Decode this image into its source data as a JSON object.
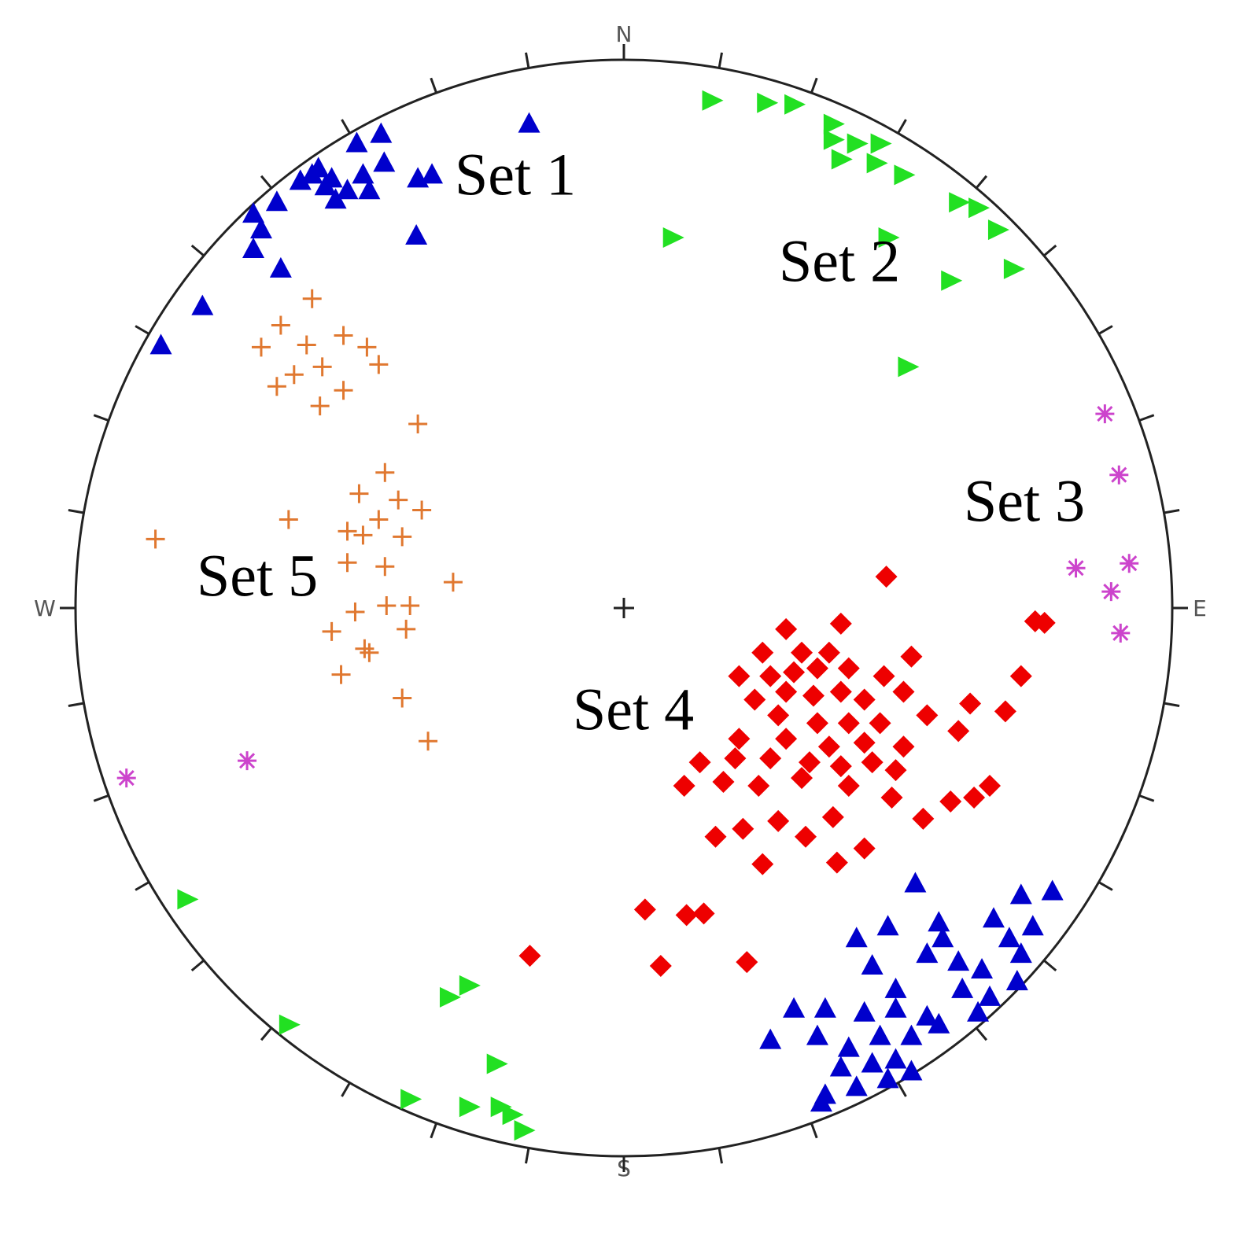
{
  "chart_data": {
    "type": "stereonet",
    "directions": {
      "north": "N",
      "east": "E",
      "south": "S",
      "west": "W"
    },
    "xlim": [
      -700,
      700
    ],
    "ylim": [
      -700,
      700
    ],
    "series": [
      {
        "name": "Set 1",
        "color": "#0000cc",
        "marker": "triangle-up",
        "x": [
          -121,
          -310,
          -341,
          -306,
          -390,
          -413,
          -373,
          -333,
          -353,
          -263,
          -245,
          -325,
          -368,
          -443,
          -473,
          -463,
          -473,
          -438,
          -538,
          -591,
          -265,
          -398,
          -381,
          372,
          547,
          507,
          337,
          402,
          472,
          522,
          297,
          407,
          492,
          317,
          387,
          427,
          457,
          507,
          347,
          432,
          467,
          502,
          217,
          257,
          307,
          347,
          387,
          452,
          187,
          247,
          287,
          327,
          367,
          402,
          277,
          317,
          347,
          257,
          297,
          337,
          367,
          252
        ],
        "y": [
          618,
          605,
          593,
          568,
          561,
          545,
          548,
          553,
          533,
          548,
          553,
          533,
          521,
          518,
          503,
          483,
          458,
          433,
          385,
          335,
          475,
          553,
          538,
          -352,
          -362,
          -367,
          -407,
          -402,
          -397,
          -407,
          -422,
          -422,
          -422,
          -457,
          -442,
          -452,
          -462,
          -442,
          -487,
          -487,
          -497,
          -477,
          -512,
          -512,
          -517,
          -512,
          -522,
          -517,
          -552,
          -547,
          -562,
          -547,
          -547,
          -532,
          -587,
          -582,
          -577,
          -622,
          -612,
          -602,
          -592,
          -632
        ]
      },
      {
        "name": "Set 2",
        "color": "#22e022",
        "marker": "triangle-right",
        "x": [
          112,
          182,
          217,
          267,
          267,
          297,
          327,
          277,
          322,
          357,
          427,
          452,
          477,
          497,
          417,
          337,
          62,
          362,
          -558,
          -223,
          -198,
          -428,
          -163,
          -273,
          -198,
          -158,
          -143,
          -128
        ],
        "y": [
          648,
          645,
          643,
          618,
          598,
          593,
          593,
          573,
          568,
          553,
          518,
          511,
          483,
          433,
          418,
          473,
          473,
          308,
          -372,
          -497,
          -482,
          -532,
          -582,
          -627,
          -637,
          -637,
          -647,
          -667
        ]
      },
      {
        "name": "Set 3",
        "color": "#cc44cc",
        "marker": "asterisk",
        "x": [
          614,
          632,
          577,
          645,
          622,
          634,
          -481,
          -635
        ],
        "y": [
          248,
          170,
          51,
          57,
          21,
          -32,
          -195,
          -217
        ]
      },
      {
        "name": "Set 4",
        "color": "#ee0000",
        "marker": "diamond",
        "x": [
          335,
          525,
          537,
          207,
          277,
          177,
          227,
          262,
          367,
          147,
          187,
          217,
          247,
          287,
          332,
          507,
          167,
          207,
          242,
          277,
          307,
          357,
          387,
          442,
          487,
          197,
          247,
          287,
          327,
          427,
          147,
          207,
          262,
          307,
          357,
          97,
          142,
          187,
          237,
          277,
          317,
          347,
          77,
          127,
          172,
          227,
          287,
          342,
          417,
          447,
          467,
          117,
          152,
          197,
          232,
          267,
          382,
          177,
          272,
          307,
          27,
          80,
          102,
          -120,
          47,
          157
        ],
        "y": [
          40,
          -17,
          -19,
          -27,
          -20,
          -57,
          -57,
          -57,
          -62,
          -87,
          -87,
          -82,
          -77,
          -77,
          -87,
          -87,
          -117,
          -107,
          -112,
          -107,
          -117,
          -107,
          -137,
          -122,
          -132,
          -137,
          -147,
          -147,
          -147,
          -157,
          -167,
          -167,
          -177,
          -172,
          -177,
          -197,
          -192,
          -192,
          -197,
          -202,
          -197,
          -207,
          -227,
          -222,
          -227,
          -217,
          -227,
          -242,
          -247,
          -242,
          -227,
          -292,
          -282,
          -272,
          -292,
          -267,
          -269,
          -327,
          -325,
          -307,
          -385,
          -392,
          -390,
          -444,
          -457,
          -452
        ]
      },
      {
        "name": "Set 5",
        "color": "#e07830",
        "marker": "plus",
        "x": [
          -398,
          -438,
          -358,
          -405,
          -463,
          -328,
          -313,
          -385,
          -421,
          -443,
          -358,
          -388,
          -263,
          -305,
          -338,
          -288,
          -258,
          -428,
          -313,
          -353,
          -333,
          -283,
          -598,
          -353,
          -305,
          -218,
          -343,
          -303,
          -273,
          -373,
          -278,
          -331,
          -325,
          -361,
          -283,
          -250
        ],
        "y": [
          395,
          361,
          348,
          336,
          333,
          333,
          311,
          308,
          298,
          283,
          278,
          258,
          235,
          173,
          146,
          138,
          125,
          113,
          113,
          98,
          93,
          91,
          88,
          58,
          53,
          33,
          -5,
          3,
          3,
          -30,
          -27,
          -52,
          -57,
          -85,
          -115,
          -170
        ]
      }
    ]
  }
}
